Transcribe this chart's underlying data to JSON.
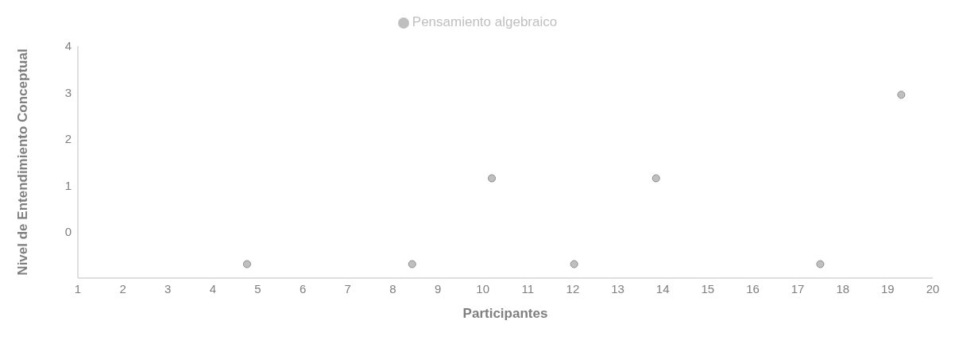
{
  "chart_data": {
    "type": "scatter",
    "xlabel": "Participantes",
    "ylabel": "Nivel de Entendimiento Conceptual",
    "series": [
      {
        "name": "Pensamiento algebraico",
        "color": "#bfbfbf",
        "x": [
          4.76,
          8.43,
          10.2,
          12.03,
          13.85,
          17.5,
          19.3
        ],
        "values": [
          -0.7,
          -0.7,
          1.15,
          -0.7,
          1.15,
          -0.7,
          2.95
        ]
      }
    ],
    "xlim": [
      1,
      20
    ],
    "xticks": [
      1,
      2,
      3,
      4,
      5,
      6,
      7,
      8,
      9,
      10,
      11,
      12,
      13,
      14,
      15,
      16,
      17,
      18,
      19,
      20
    ],
    "ylim": [
      -1,
      4
    ],
    "yticks": [
      0,
      1,
      2,
      3,
      4
    ],
    "grid": false,
    "legend": "top",
    "marker": "circle"
  }
}
